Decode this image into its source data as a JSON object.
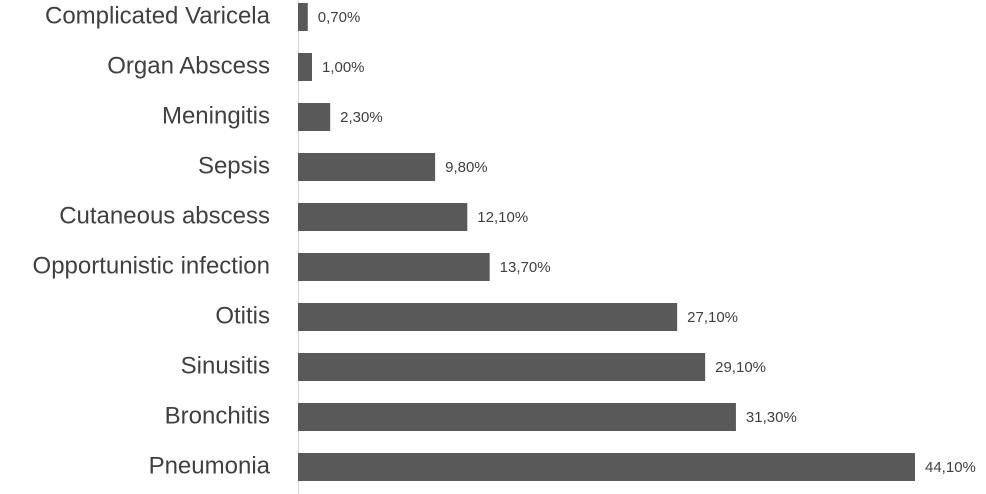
{
  "chart_data": {
    "type": "bar",
    "orientation": "horizontal",
    "categories": [
      "Complicated Varicela",
      "Organ Abscess",
      "Meningitis",
      "Sepsis",
      "Cutaneous abscess",
      "Opportunistic infection",
      "Otitis",
      "Sinusitis",
      "Bronchitis",
      "Pneumonia"
    ],
    "values": [
      0.7,
      1.0,
      2.3,
      9.8,
      12.1,
      13.7,
      27.1,
      29.1,
      31.3,
      44.1
    ],
    "value_labels": [
      "0,70%",
      "1,00%",
      "2,30%",
      "9,80%",
      "12,10%",
      "13,70%",
      "27,10%",
      "29,10%",
      "31,30%",
      "44,10%"
    ],
    "color": "#595959"
  }
}
